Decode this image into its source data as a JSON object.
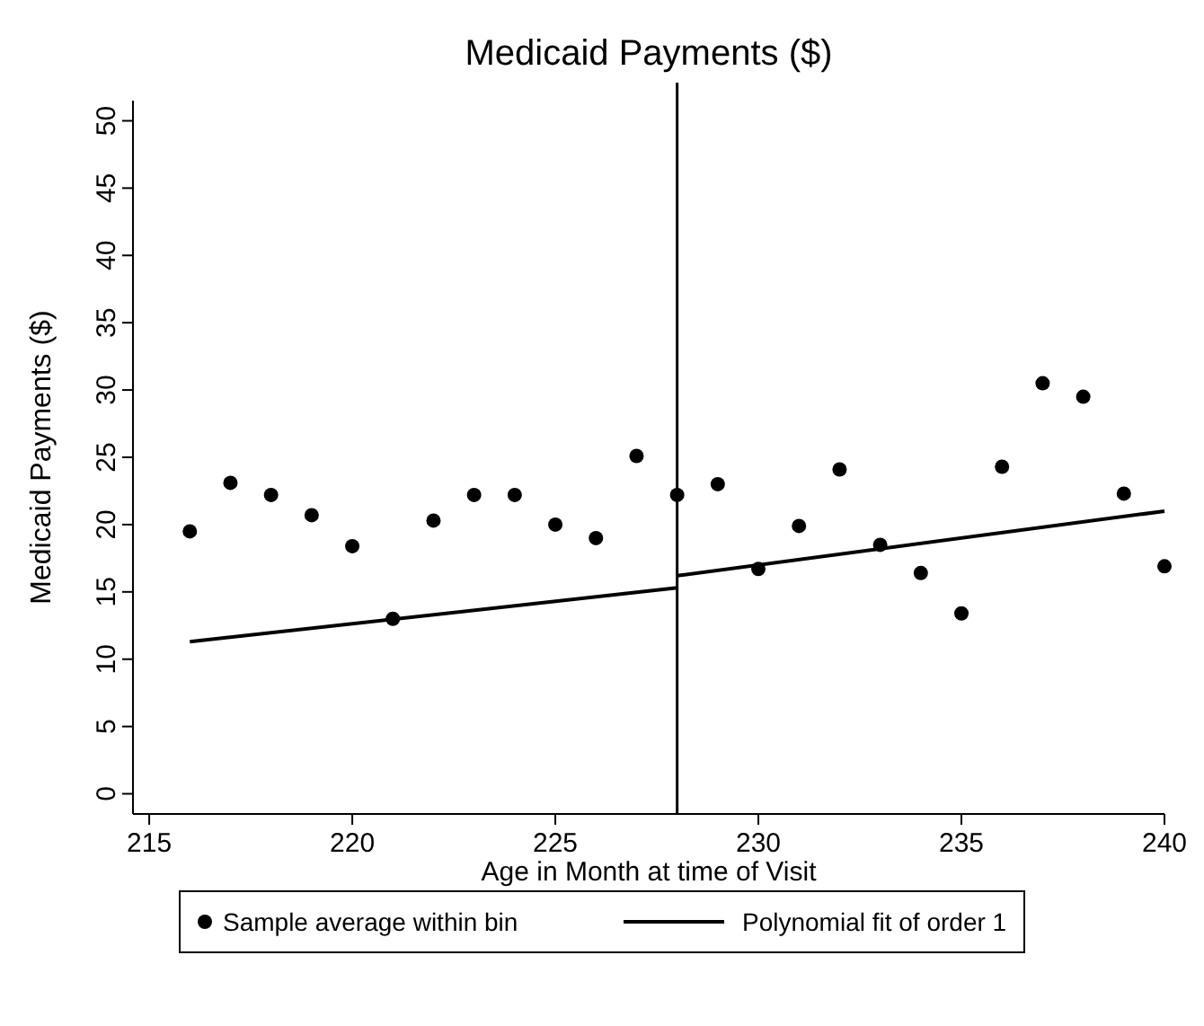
{
  "chart_data": {
    "type": "scatter",
    "title": "Medicaid Payments ($)",
    "xlabel": "Age in Month at time of Visit",
    "ylabel": "Medicaid Payments ($)",
    "xlim": [
      214.6,
      240
    ],
    "xticks": [
      215,
      220,
      225,
      230,
      235,
      240
    ],
    "ylim": [
      -1.5,
      51.5
    ],
    "yticks": [
      0,
      5,
      10,
      15,
      20,
      25,
      30,
      35,
      40,
      45,
      50
    ],
    "grid": false,
    "legend": "bottom",
    "marker": "circle",
    "ref_lines": [
      {
        "axis": "x",
        "value": 228,
        "color": "#000000"
      }
    ],
    "series": [
      {
        "name": "Sample average within bin",
        "color": "#000000",
        "x": [
          216,
          217,
          218,
          219,
          220,
          221,
          222,
          223,
          224,
          225,
          226,
          227,
          228,
          229,
          230,
          231,
          232,
          233,
          234,
          235,
          236,
          237,
          238,
          239,
          240
        ],
        "values": [
          19.5,
          23.1,
          22.2,
          20.7,
          18.4,
          13.0,
          20.3,
          22.2,
          22.2,
          20.0,
          19.0,
          25.1,
          22.2,
          23.0,
          16.7,
          19.9,
          24.1,
          18.5,
          16.4,
          13.4,
          24.3,
          30.5,
          29.5,
          22.3,
          16.9
        ]
      },
      {
        "name": "Polynomial fit of order 1",
        "type": "line",
        "marker": "none",
        "line_style": "solid",
        "color": "#000000",
        "x": [
          216,
          228
        ],
        "values": [
          11.3,
          15.3
        ]
      },
      {
        "type": "line",
        "marker": "none",
        "line_style": "solid",
        "color": "#000000",
        "x": [
          228,
          240
        ],
        "values": [
          16.2,
          21.0
        ]
      }
    ]
  }
}
